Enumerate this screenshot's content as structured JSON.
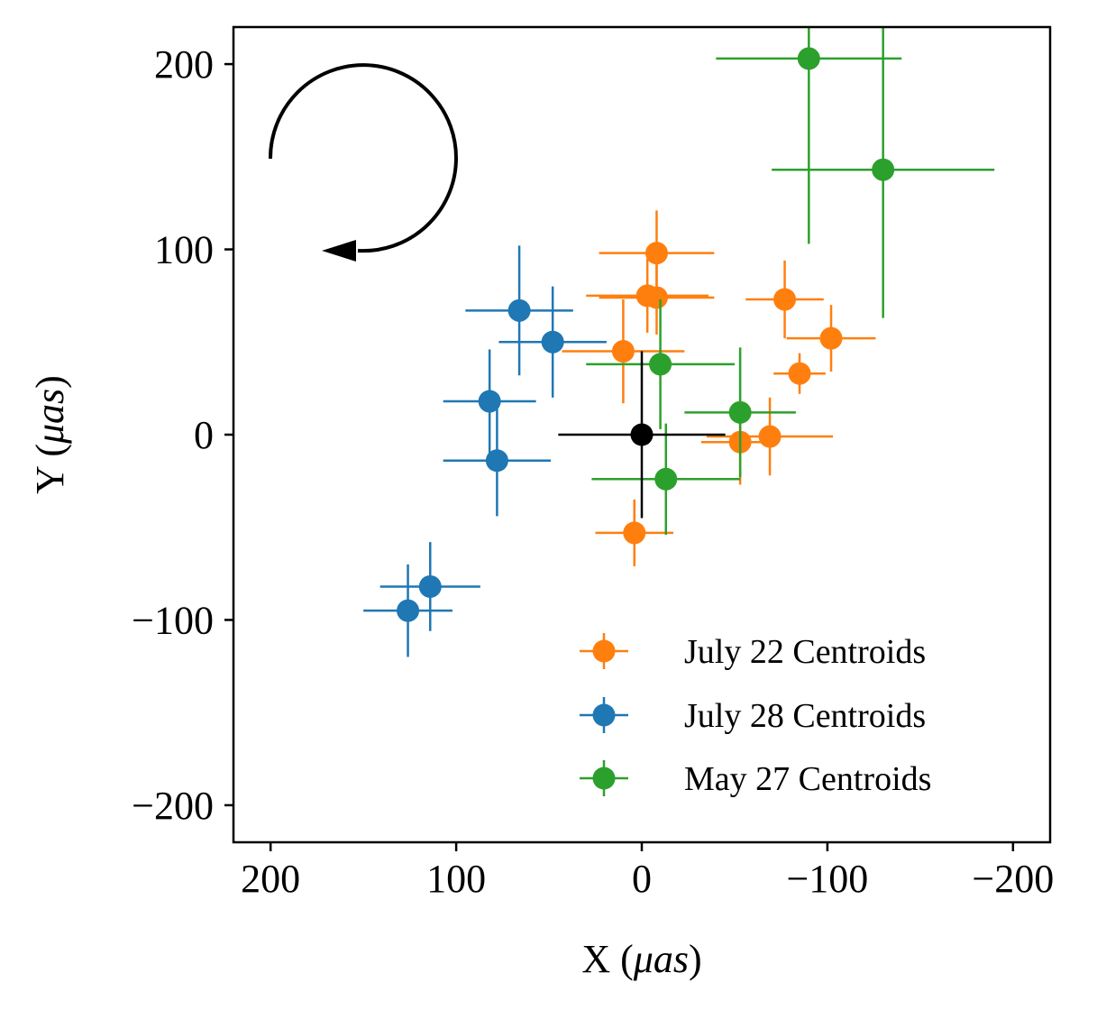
{
  "chart_data": {
    "type": "scatter",
    "xlabel": "X (μas)",
    "ylabel": "Y (μas)",
    "xlabel_parts": {
      "prefix": "X (",
      "unit": "μas",
      "suffix": ")"
    },
    "ylabel_parts": {
      "prefix": "Y (",
      "unit": "μas",
      "suffix": ")"
    },
    "xlim": [
      220,
      -220
    ],
    "ylim": [
      -220,
      220
    ],
    "xaxis_inverted": true,
    "grid": false,
    "legend_placement": "lower-right",
    "x_ticks": [
      200,
      100,
      0,
      -100,
      -200
    ],
    "y_ticks": [
      200,
      100,
      0,
      -100,
      -200
    ],
    "x_tick_labels": [
      "200",
      "100",
      "0",
      "−100",
      "−200"
    ],
    "y_tick_labels": [
      "200",
      "100",
      "0",
      "−100",
      "−200"
    ],
    "reference_point": {
      "x": 0,
      "y": 0,
      "xerr": 45,
      "yerr": 45,
      "color": "#000000"
    },
    "rotation_arrow": {
      "direction": "counter-clockwise",
      "color": "#000000"
    },
    "series": [
      {
        "name": "July 22 Centroids",
        "color": "#ff7f0e",
        "points": [
          {
            "x": -8,
            "y": 98,
            "xerr": 31,
            "yerr": 23
          },
          {
            "x": -3,
            "y": 75,
            "xerr": 33,
            "yerr": 20
          },
          {
            "x": -8,
            "y": 74,
            "xerr": 31,
            "yerr": 20
          },
          {
            "x": 10,
            "y": 45,
            "xerr": 33,
            "yerr": 28
          },
          {
            "x": -77,
            "y": 73,
            "xerr": 21,
            "yerr": 21
          },
          {
            "x": -102,
            "y": 52,
            "xerr": 24,
            "yerr": 18
          },
          {
            "x": -85,
            "y": 33,
            "xerr": 14,
            "yerr": 11
          },
          {
            "x": -53,
            "y": -4,
            "xerr": 21,
            "yerr": 23
          },
          {
            "x": -69,
            "y": -1,
            "xerr": 34,
            "yerr": 21
          },
          {
            "x": 4,
            "y": -53,
            "xerr": 21,
            "yerr": 18
          }
        ]
      },
      {
        "name": "July 28 Centroids",
        "color": "#1f77b4",
        "points": [
          {
            "x": 66,
            "y": 67,
            "xerr": 29,
            "yerr": 35
          },
          {
            "x": 48,
            "y": 50,
            "xerr": 29,
            "yerr": 30
          },
          {
            "x": 82,
            "y": 18,
            "xerr": 25,
            "yerr": 28
          },
          {
            "x": 78,
            "y": -14,
            "xerr": 29,
            "yerr": 30
          },
          {
            "x": 126,
            "y": -95,
            "xerr": 24,
            "yerr": 25
          },
          {
            "x": 114,
            "y": -82,
            "xerr": 27,
            "yerr": 24
          }
        ]
      },
      {
        "name": "May 27 Centroids",
        "color": "#2ca02c",
        "points": [
          {
            "x": -90,
            "y": 203,
            "xerr": 50,
            "yerr": 100
          },
          {
            "x": -130,
            "y": 143,
            "xerr": 60,
            "yerr": 80
          },
          {
            "x": -10,
            "y": 38,
            "xerr": 40,
            "yerr": 35
          },
          {
            "x": -53,
            "y": 12,
            "xerr": 30,
            "yerr": 35
          },
          {
            "x": -13,
            "y": -24,
            "xerr": 40,
            "yerr": 30
          }
        ]
      }
    ]
  }
}
